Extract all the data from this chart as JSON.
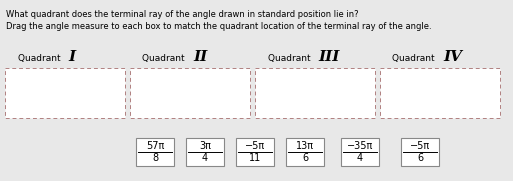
{
  "title_line1": "What quadrant does the terminal ray of the angle drawn in standard position lie in?",
  "title_line2": "Drag the angle measure to each box to match the quadrant location of the terminal ray of the angle.",
  "quadrant_labels": [
    "Quadrant",
    "Quadrant",
    "Quadrant",
    "Quadrant"
  ],
  "quadrant_roman": [
    "I",
    "II",
    "III",
    "IV"
  ],
  "bg_color": "#e8e8e8",
  "angle_labels": [
    {
      "num": "57π",
      "den": "8",
      "neg": false
    },
    {
      "num": "3π",
      "den": "4",
      "neg": false
    },
    {
      "num": "5π",
      "den": "11",
      "neg": true
    },
    {
      "num": "13π",
      "den": "6",
      "neg": false
    },
    {
      "num": "35π",
      "den": "4",
      "neg": true
    },
    {
      "num": "5π",
      "den": "6",
      "neg": true
    }
  ]
}
